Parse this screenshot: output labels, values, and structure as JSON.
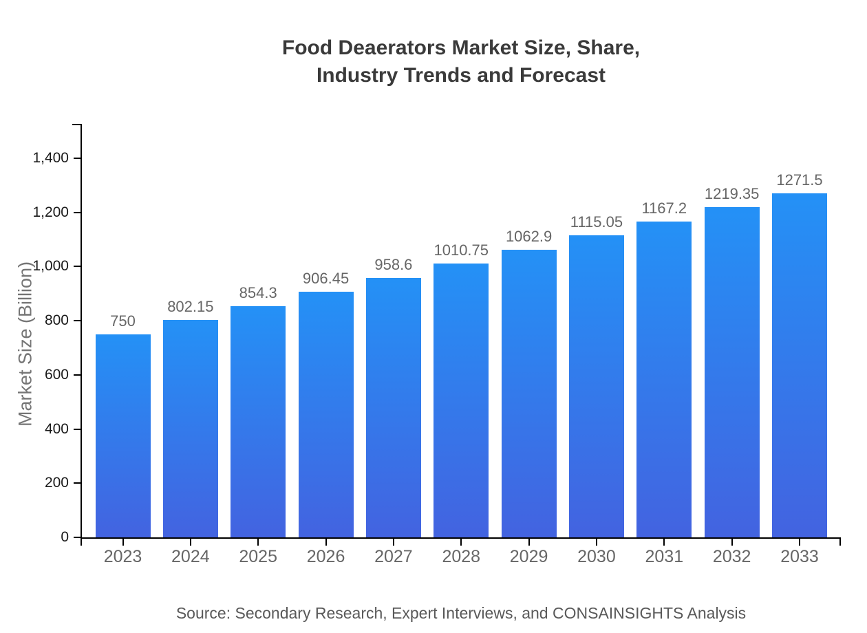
{
  "title": {
    "line1": "Food Deaerators Market Size, Share,",
    "line2": "Industry Trends and Forecast"
  },
  "source_note": "Source: Secondary Research, Expert Interviews, and CONSAINSIGHTS Analysis",
  "colors": {
    "bar_gradient_top": "#2491f6",
    "bar_gradient_bottom": "#4363e0",
    "axis": "#000000",
    "title_text": "#3a3a3a",
    "y_tick_text": "#1a1a1a",
    "x_tick_text": "#666666",
    "value_label_text": "#666666",
    "y_axis_title_text": "#757575",
    "source_text": "#595959",
    "background": "#ffffff"
  },
  "chart_data": {
    "type": "bar",
    "title": "Food Deaerators Market Size, Share, Industry Trends and Forecast",
    "categories": [
      "2023",
      "2024",
      "2025",
      "2026",
      "2027",
      "2028",
      "2029",
      "2030",
      "2031",
      "2032",
      "2033"
    ],
    "values": [
      750,
      802.15,
      854.3,
      906.45,
      958.6,
      1010.75,
      1062.9,
      1115.05,
      1167.2,
      1219.35,
      1271.5
    ],
    "value_labels": [
      "750",
      "802.15",
      "854.3",
      "906.45",
      "958.6",
      "1010.75",
      "1062.9",
      "1115.05",
      "1167.2",
      "1219.35",
      "1271.5"
    ],
    "xlabel": "",
    "ylabel": "Market Size (Billion)",
    "ylim": [
      0,
      1400
    ],
    "yticks": [
      0,
      200,
      400,
      600,
      800,
      1000,
      1200,
      1400
    ],
    "ytick_labels": [
      "0",
      "200",
      "400",
      "600",
      "800",
      "1,000",
      "1,200",
      "1,400"
    ],
    "grid": false,
    "legend": false,
    "bar_label_position": "above"
  }
}
